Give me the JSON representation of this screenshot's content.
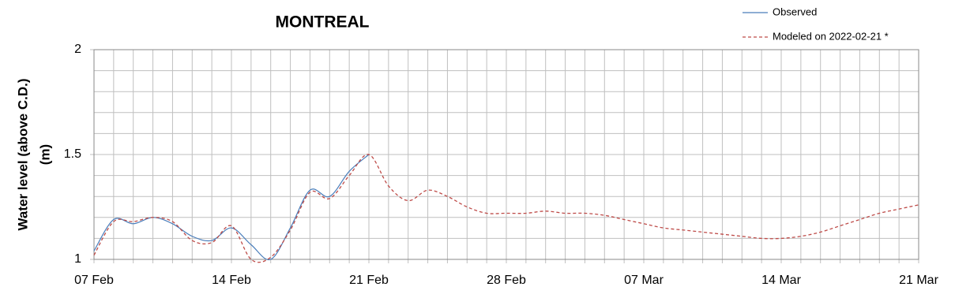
{
  "chart_data": {
    "type": "line",
    "title": "MONTREAL",
    "y_label": [
      "Water level (above C.D.)",
      "(m)"
    ],
    "categories": [
      "07 Feb",
      null,
      null,
      null,
      null,
      null,
      null,
      "14 Feb",
      null,
      null,
      null,
      null,
      null,
      null,
      "21 Feb",
      null,
      null,
      null,
      null,
      null,
      null,
      "28 Feb",
      null,
      null,
      null,
      null,
      null,
      null,
      "07 Mar",
      null,
      null,
      null,
      null,
      null,
      null,
      "14 Mar",
      null,
      null,
      null,
      null,
      null,
      null,
      "21 Mar"
    ],
    "series": [
      {
        "name": "Observed",
        "color": "#4a7ebb",
        "dashed": false,
        "values": [
          1.04,
          1.19,
          1.17,
          1.2,
          1.17,
          1.11,
          1.09,
          1.15,
          1.07,
          1.0,
          1.15,
          1.33,
          1.3,
          1.42,
          1.5,
          null,
          null,
          null,
          null,
          null,
          null,
          null,
          null,
          null,
          null,
          null,
          null,
          null,
          null,
          null,
          null,
          null,
          null,
          null,
          null,
          null,
          null,
          null,
          null,
          null,
          null,
          null,
          null
        ]
      },
      {
        "name": "Modeled on 2022-02-21 *",
        "color": "#be4b48",
        "dashed": true,
        "values": [
          1.02,
          1.18,
          1.18,
          1.2,
          1.18,
          1.09,
          1.08,
          1.16,
          1.0,
          1.01,
          1.14,
          1.32,
          1.29,
          1.4,
          1.5,
          1.35,
          1.28,
          1.33,
          1.3,
          1.25,
          1.22,
          1.22,
          1.22,
          1.23,
          1.22,
          1.22,
          1.21,
          1.19,
          1.17,
          1.15,
          1.14,
          1.13,
          1.12,
          1.11,
          1.1,
          1.1,
          1.11,
          1.13,
          1.16,
          1.19,
          1.22,
          1.24,
          1.26
        ]
      }
    ],
    "ylim": [
      1,
      2
    ],
    "yticks": [
      1,
      1.5,
      2
    ],
    "y_minor_ticks": [
      1.1,
      1.2,
      1.3,
      1.4,
      1.6,
      1.7,
      1.8,
      1.9
    ],
    "grid": true
  }
}
